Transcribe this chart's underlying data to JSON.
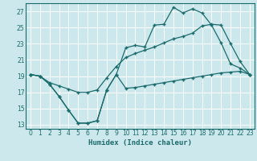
{
  "xlabel": "Humidex (Indice chaleur)",
  "bg_color": "#cce8ec",
  "grid_color": "#ffffff",
  "line_color": "#1a6b6b",
  "xlim": [
    -0.5,
    23.5
  ],
  "ylim": [
    12.5,
    28.0
  ],
  "xticks": [
    0,
    1,
    2,
    3,
    4,
    5,
    6,
    7,
    8,
    9,
    10,
    11,
    12,
    13,
    14,
    15,
    16,
    17,
    18,
    19,
    20,
    21,
    22,
    23
  ],
  "yticks": [
    13,
    15,
    17,
    19,
    21,
    23,
    25,
    27
  ],
  "line1_x": [
    0,
    1,
    2,
    3,
    4,
    5,
    6,
    7,
    8,
    9,
    10,
    11,
    12,
    13,
    14,
    15,
    16,
    17,
    18,
    19,
    20,
    21,
    22,
    23
  ],
  "line1_y": [
    19.2,
    19.0,
    18.0,
    16.5,
    14.8,
    13.2,
    13.2,
    13.5,
    17.3,
    19.2,
    17.5,
    17.6,
    17.8,
    18.0,
    18.2,
    18.4,
    18.6,
    18.8,
    19.0,
    19.2,
    19.4,
    19.5,
    19.6,
    19.2
  ],
  "line2_x": [
    0,
    1,
    2,
    3,
    4,
    5,
    6,
    7,
    8,
    9,
    10,
    11,
    12,
    13,
    14,
    15,
    16,
    17,
    18,
    19,
    20,
    21,
    22,
    23
  ],
  "line2_y": [
    19.2,
    19.0,
    18.0,
    16.5,
    14.8,
    13.2,
    13.2,
    13.5,
    17.3,
    19.2,
    22.5,
    22.8,
    22.6,
    25.3,
    25.4,
    27.5,
    26.8,
    27.3,
    26.8,
    25.3,
    23.1,
    20.5,
    20.0,
    19.2
  ],
  "line3_x": [
    0,
    1,
    2,
    3,
    4,
    5,
    6,
    7,
    8,
    9,
    10,
    11,
    12,
    13,
    14,
    15,
    16,
    17,
    18,
    19,
    20,
    21,
    22,
    23
  ],
  "line3_y": [
    19.2,
    19.0,
    18.2,
    17.8,
    17.4,
    17.0,
    17.0,
    17.3,
    18.8,
    20.2,
    21.3,
    21.8,
    22.2,
    22.6,
    23.1,
    23.6,
    23.9,
    24.3,
    25.2,
    25.4,
    25.3,
    23.0,
    20.8,
    19.2
  ]
}
